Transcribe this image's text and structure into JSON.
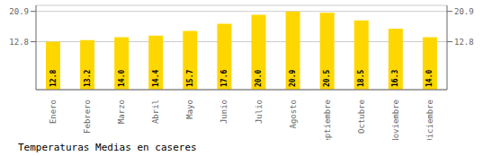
{
  "chart_data": {
    "type": "bar",
    "title": "Temperaturas Medias en caseres",
    "categories": [
      "Enero",
      "Febrero",
      "Marzo",
      "Abril",
      "Mayo",
      "Junio",
      "Julio",
      "Agosto",
      "Septiembre",
      "Octubre",
      "Noviembre",
      "Diciembre"
    ],
    "values": [
      12.8,
      13.2,
      14.0,
      14.4,
      15.7,
      17.6,
      20.0,
      20.9,
      20.5,
      18.5,
      16.3,
      14.0
    ],
    "value_labels": [
      "12.8",
      "13.2",
      "14.0",
      "14.4",
      "15.7",
      "17.6",
      "20.0",
      "20.9",
      "20.5",
      "18.5",
      "16.3",
      "14.0"
    ],
    "color": "#FFD700",
    "ylim": [
      0.0,
      22.5
    ],
    "yticks": [
      12.8,
      20.9
    ],
    "y2lim": [
      0.0,
      22.5
    ],
    "y2ticks": [
      12.8,
      20.9
    ],
    "grid": true,
    "data_labels": true
  }
}
